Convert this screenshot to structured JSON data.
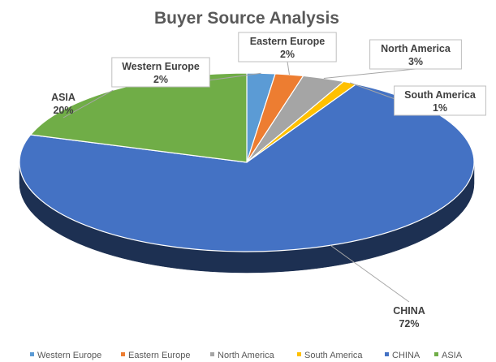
{
  "chart_data": {
    "type": "pie",
    "title": "Buyer Source Analysis",
    "three_d": true,
    "legend_position": "bottom",
    "slices": [
      {
        "name": "Western Europe",
        "value": 2,
        "label": "2%",
        "color": "#5B9BD5"
      },
      {
        "name": "Eastern Europe",
        "value": 2,
        "label": "2%",
        "color": "#ED7D31"
      },
      {
        "name": "North America",
        "value": 3,
        "label": "3%",
        "color": "#A5A5A5"
      },
      {
        "name": "South America",
        "value": 1,
        "label": "1%",
        "color": "#FFC000"
      },
      {
        "name": "CHINA",
        "value": 72,
        "label": "72%",
        "color": "#4472C4"
      },
      {
        "name": "ASIA",
        "value": 20,
        "label": "20%",
        "color": "#70AD47"
      }
    ]
  }
}
